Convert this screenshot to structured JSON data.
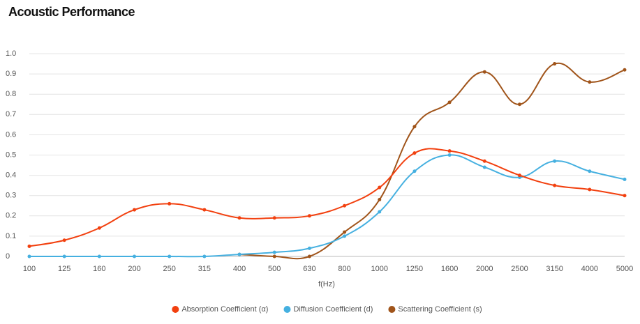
{
  "chart_data": {
    "type": "line",
    "title": "Acoustic Performance",
    "x_label": "f(Hz)",
    "categories": [
      "100",
      "125",
      "160",
      "200",
      "250",
      "315",
      "400",
      "500",
      "630",
      "800",
      "1000",
      "1250",
      "1600",
      "2000",
      "2500",
      "3150",
      "4000",
      "5000"
    ],
    "series": [
      {
        "name": "Absorption Coefficient (α)",
        "color": "#f2400f",
        "values": [
          0.05,
          0.08,
          0.14,
          0.23,
          0.26,
          0.23,
          0.19,
          0.19,
          0.2,
          0.25,
          0.34,
          0.51,
          0.52,
          0.47,
          0.4,
          0.35,
          0.33,
          0.3
        ]
      },
      {
        "name": "Diffusion Coefficient (d)",
        "color": "#45b0e0",
        "values": [
          0,
          0,
          0,
          0,
          0,
          0,
          0.01,
          0.02,
          0.04,
          0.1,
          0.22,
          0.42,
          0.5,
          0.44,
          0.39,
          0.47,
          0.42,
          0.38
        ]
      },
      {
        "name": "Scattering Coefficient (s)",
        "color": "#a0541a",
        "values": [
          null,
          null,
          null,
          null,
          null,
          null,
          0.01,
          0,
          0,
          0.12,
          0.28,
          0.64,
          0.76,
          0.91,
          0.75,
          0.95,
          0.86,
          0.92
        ]
      }
    ],
    "ylim": [
      0,
      1
    ],
    "yticks": [
      0,
      0.1,
      0.2,
      0.3,
      0.4,
      0.5,
      0.6,
      0.7,
      0.8,
      0.9,
      {
        "value": 1,
        "label": "1.0"
      }
    ],
    "grid": true,
    "legend": "bottom"
  }
}
